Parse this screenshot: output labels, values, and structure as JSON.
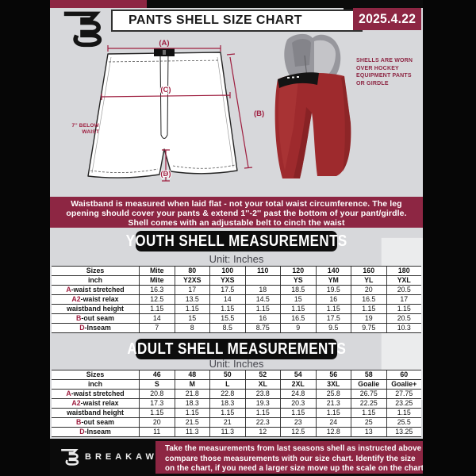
{
  "colors": {
    "maroon": "#8d2643",
    "annotation_maroon": "#9e1e3f",
    "shell_red": "#9e2a2d",
    "page_bg": "#d7d8db"
  },
  "header": {
    "title": "PANTS SHELL SIZE CHART",
    "date": "2025.4.22",
    "brand_mark": "breakaway-b-monogram"
  },
  "diagram": {
    "label_a": "(A)",
    "label_b": "(B)",
    "label_c": "(C)",
    "label_d": "(D)",
    "below_waist_line1": "7'' BELOW",
    "below_waist_line2": "WAIST"
  },
  "photo": {
    "caption_lines": [
      "SHELLS ARE WORN",
      "OVER HOCKEY",
      "EQUIPMENT PANTS",
      "OR GIRDLE"
    ]
  },
  "info_banner": {
    "lines": [
      "Waistband is measured when laid flat - not your total waist circumference. The leg",
      "opening should cover your pants & extend 1''-2'' past the bottom of your pant/girdle.",
      "Shell comes with an adjustable belt to cinch the waist"
    ]
  },
  "youth": {
    "heading": "YOUTH SHELL MEASUREMENTS",
    "unit_label": "Unit: Inches",
    "table": {
      "rows": [
        {
          "label": "Sizes",
          "bold": true,
          "values": [
            "Mite",
            "80",
            "100",
            "110",
            "120",
            "140",
            "160",
            "180"
          ]
        },
        {
          "label": "inch",
          "bold": true,
          "values": [
            "Mite",
            "Y2XS",
            "YXS",
            "",
            "YS",
            "YM",
            "YL",
            "YXL"
          ]
        },
        {
          "prefix": "A",
          "label": "-waist stretched",
          "values": [
            "16.3",
            "17",
            "17.5",
            "18",
            "18.5",
            "19.5",
            "20",
            "20.5"
          ]
        },
        {
          "prefix": "A2",
          "label": "-waist relax",
          "values": [
            "12.5",
            "13.5",
            "14",
            "14.5",
            "15",
            "16",
            "16.5",
            "17"
          ]
        },
        {
          "label": "waistband height",
          "values": [
            "1.15",
            "1.15",
            "1.15",
            "1.15",
            "1.15",
            "1.15",
            "1.15",
            "1.15"
          ]
        },
        {
          "prefix": "B",
          "label": "-out seam",
          "values": [
            "14",
            "15",
            "15.5",
            "16",
            "16.5",
            "17.5",
            "19",
            "20.5"
          ]
        },
        {
          "prefix": "D",
          "label": "-Inseam",
          "values": [
            "7",
            "8",
            "8.5",
            "8.75",
            "9",
            "9.5",
            "9.75",
            "10.3"
          ]
        }
      ]
    }
  },
  "adult": {
    "heading": "ADULT SHELL MEASUREMENTS",
    "unit_label": "Unit: Inches",
    "table": {
      "rows": [
        {
          "label": "Sizes",
          "bold": true,
          "values": [
            "46",
            "48",
            "50",
            "52",
            "54",
            "56",
            "58",
            "60"
          ]
        },
        {
          "label": "inch",
          "bold": true,
          "values": [
            "S",
            "M",
            "L",
            "XL",
            "2XL",
            "3XL",
            "Goalie",
            "Goalie+"
          ]
        },
        {
          "prefix": "A",
          "label": "-waist stretched",
          "values": [
            "20.8",
            "21.8",
            "22.8",
            "23.8",
            "24.8",
            "25.8",
            "26.75",
            "27.75"
          ]
        },
        {
          "prefix": "A2",
          "label": "-waist relax",
          "values": [
            "17.3",
            "18.3",
            "18.3",
            "19.3",
            "20.3",
            "21.3",
            "22.25",
            "23.25"
          ]
        },
        {
          "label": "waistband height",
          "values": [
            "1.15",
            "1.15",
            "1.15",
            "1.15",
            "1.15",
            "1.15",
            "1.15",
            "1.15"
          ]
        },
        {
          "prefix": "B",
          "label": "-out seam",
          "values": [
            "20",
            "21.5",
            "21",
            "22.3",
            "23",
            "24",
            "25",
            "25.5"
          ]
        },
        {
          "prefix": "D",
          "label": "-Inseam",
          "values": [
            "11",
            "11.3",
            "11.3",
            "12",
            "12.5",
            "12.8",
            "13",
            "13.25"
          ]
        }
      ]
    }
  },
  "footer": {
    "brand_name": "BREAKAWAY",
    "note_lines": [
      "Take the measurements from last seasons shell as instructed above",
      "compare those measurements  with our size chart. Identify the size",
      "on the chart, if you need a larger size move up the scale on the chart"
    ]
  },
  "watermark_letter": "B"
}
